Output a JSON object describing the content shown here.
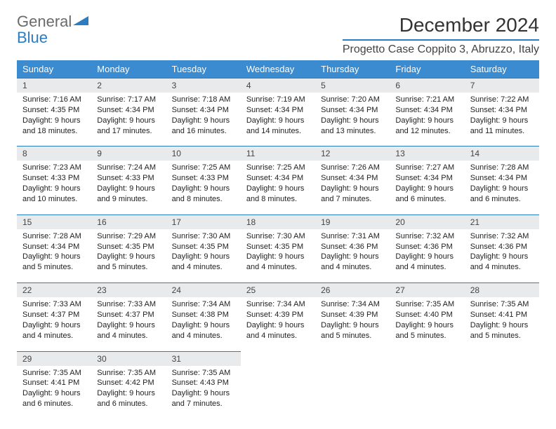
{
  "logo": {
    "text1": "General",
    "text2": "Blue"
  },
  "title": "December 2024",
  "location": "Progetto Case Coppito 3, Abruzzo, Italy",
  "colors": {
    "header_bg": "#3a8bd0",
    "header_text": "#ffffff",
    "daynum_bg": "#e9eaec",
    "accent": "#2b7cc0",
    "logo_gray": "#6b6b6b"
  },
  "weekdays": [
    "Sunday",
    "Monday",
    "Tuesday",
    "Wednesday",
    "Thursday",
    "Friday",
    "Saturday"
  ],
  "weeks": [
    [
      {
        "n": "1",
        "sr": "7:16 AM",
        "ss": "4:35 PM",
        "dl": "9 hours and 18 minutes."
      },
      {
        "n": "2",
        "sr": "7:17 AM",
        "ss": "4:34 PM",
        "dl": "9 hours and 17 minutes."
      },
      {
        "n": "3",
        "sr": "7:18 AM",
        "ss": "4:34 PM",
        "dl": "9 hours and 16 minutes."
      },
      {
        "n": "4",
        "sr": "7:19 AM",
        "ss": "4:34 PM",
        "dl": "9 hours and 14 minutes."
      },
      {
        "n": "5",
        "sr": "7:20 AM",
        "ss": "4:34 PM",
        "dl": "9 hours and 13 minutes."
      },
      {
        "n": "6",
        "sr": "7:21 AM",
        "ss": "4:34 PM",
        "dl": "9 hours and 12 minutes."
      },
      {
        "n": "7",
        "sr": "7:22 AM",
        "ss": "4:34 PM",
        "dl": "9 hours and 11 minutes."
      }
    ],
    [
      {
        "n": "8",
        "sr": "7:23 AM",
        "ss": "4:33 PM",
        "dl": "9 hours and 10 minutes."
      },
      {
        "n": "9",
        "sr": "7:24 AM",
        "ss": "4:33 PM",
        "dl": "9 hours and 9 minutes."
      },
      {
        "n": "10",
        "sr": "7:25 AM",
        "ss": "4:33 PM",
        "dl": "9 hours and 8 minutes."
      },
      {
        "n": "11",
        "sr": "7:25 AM",
        "ss": "4:34 PM",
        "dl": "9 hours and 8 minutes."
      },
      {
        "n": "12",
        "sr": "7:26 AM",
        "ss": "4:34 PM",
        "dl": "9 hours and 7 minutes."
      },
      {
        "n": "13",
        "sr": "7:27 AM",
        "ss": "4:34 PM",
        "dl": "9 hours and 6 minutes."
      },
      {
        "n": "14",
        "sr": "7:28 AM",
        "ss": "4:34 PM",
        "dl": "9 hours and 6 minutes."
      }
    ],
    [
      {
        "n": "15",
        "sr": "7:28 AM",
        "ss": "4:34 PM",
        "dl": "9 hours and 5 minutes."
      },
      {
        "n": "16",
        "sr": "7:29 AM",
        "ss": "4:35 PM",
        "dl": "9 hours and 5 minutes."
      },
      {
        "n": "17",
        "sr": "7:30 AM",
        "ss": "4:35 PM",
        "dl": "9 hours and 4 minutes."
      },
      {
        "n": "18",
        "sr": "7:30 AM",
        "ss": "4:35 PM",
        "dl": "9 hours and 4 minutes."
      },
      {
        "n": "19",
        "sr": "7:31 AM",
        "ss": "4:36 PM",
        "dl": "9 hours and 4 minutes."
      },
      {
        "n": "20",
        "sr": "7:32 AM",
        "ss": "4:36 PM",
        "dl": "9 hours and 4 minutes."
      },
      {
        "n": "21",
        "sr": "7:32 AM",
        "ss": "4:36 PM",
        "dl": "9 hours and 4 minutes."
      }
    ],
    [
      {
        "n": "22",
        "sr": "7:33 AM",
        "ss": "4:37 PM",
        "dl": "9 hours and 4 minutes."
      },
      {
        "n": "23",
        "sr": "7:33 AM",
        "ss": "4:37 PM",
        "dl": "9 hours and 4 minutes."
      },
      {
        "n": "24",
        "sr": "7:34 AM",
        "ss": "4:38 PM",
        "dl": "9 hours and 4 minutes."
      },
      {
        "n": "25",
        "sr": "7:34 AM",
        "ss": "4:39 PM",
        "dl": "9 hours and 4 minutes."
      },
      {
        "n": "26",
        "sr": "7:34 AM",
        "ss": "4:39 PM",
        "dl": "9 hours and 5 minutes."
      },
      {
        "n": "27",
        "sr": "7:35 AM",
        "ss": "4:40 PM",
        "dl": "9 hours and 5 minutes."
      },
      {
        "n": "28",
        "sr": "7:35 AM",
        "ss": "4:41 PM",
        "dl": "9 hours and 5 minutes."
      }
    ],
    [
      {
        "n": "29",
        "sr": "7:35 AM",
        "ss": "4:41 PM",
        "dl": "9 hours and 6 minutes."
      },
      {
        "n": "30",
        "sr": "7:35 AM",
        "ss": "4:42 PM",
        "dl": "9 hours and 6 minutes."
      },
      {
        "n": "31",
        "sr": "7:35 AM",
        "ss": "4:43 PM",
        "dl": "9 hours and 7 minutes."
      },
      null,
      null,
      null,
      null
    ]
  ],
  "labels": {
    "sunrise": "Sunrise:",
    "sunset": "Sunset:",
    "daylight": "Daylight:"
  }
}
